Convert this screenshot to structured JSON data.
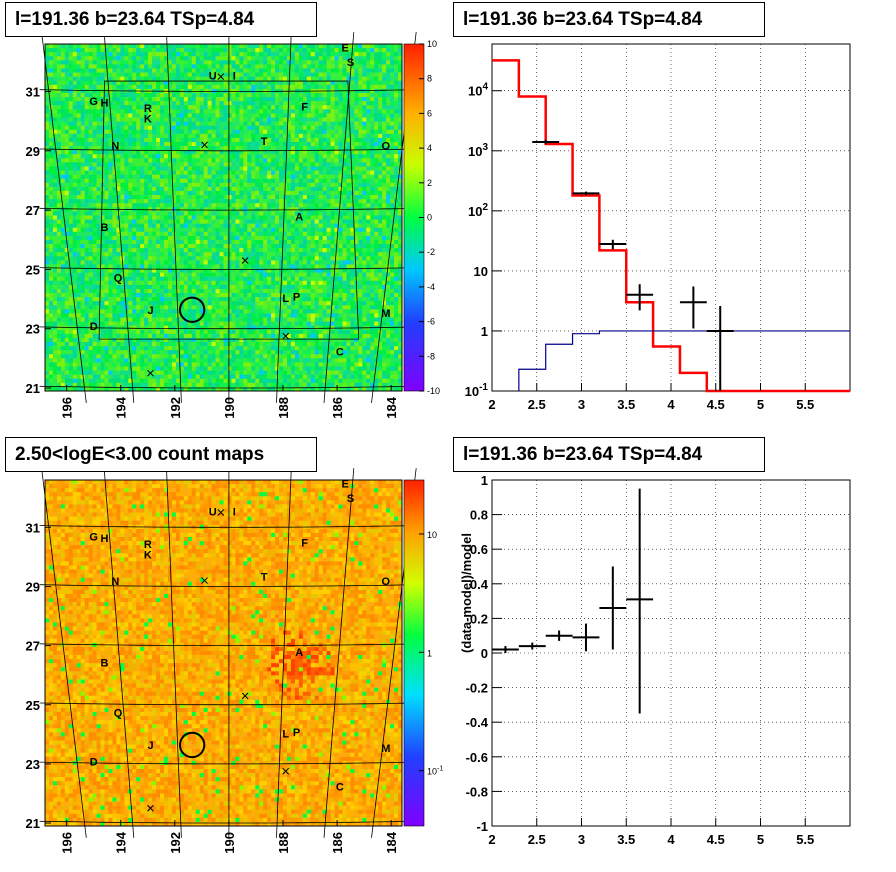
{
  "panels": {
    "top_left_title": "l=191.36 b=23.64 TSp=4.84",
    "top_right_title": "l=191.36 b=23.64 TSp=4.84",
    "bottom_left_title": "2.50<logE<3.00 count maps",
    "bottom_right_title": "l=191.36 b=23.64 TSp=4.84"
  },
  "colors": {
    "data": "#000000",
    "model": "#ff0000",
    "source": "#00008b"
  },
  "chart_data": [
    {
      "type": "heatmap",
      "panel": "residual map",
      "title": "l=191.36 b=23.64 TSp=4.84",
      "x_ticks": [
        "196",
        "194",
        "192",
        "190",
        "188",
        "186",
        "184"
      ],
      "y_ticks": [
        "31",
        "29",
        "27",
        "25",
        "23",
        "21"
      ],
      "xlim": [
        196.8,
        183.6
      ],
      "ylim": [
        20.9,
        32.6
      ],
      "colorbar": {
        "min": -10,
        "max": 10,
        "ticks": [
          "10",
          "8",
          "6",
          "4",
          "2",
          "0",
          "-2",
          "-4",
          "-6",
          "-8",
          "-10"
        ]
      },
      "labels": [
        {
          "t": "E",
          "l": 185.7,
          "b": 32.35
        },
        {
          "t": "S",
          "l": 185.5,
          "b": 31.85
        },
        {
          "t": "U",
          "l": 190.6,
          "b": 31.4
        },
        {
          "t": "I",
          "l": 189.8,
          "b": 31.4
        },
        {
          "t": "G",
          "l": 195.0,
          "b": 30.55
        },
        {
          "t": "H",
          "l": 194.6,
          "b": 30.5
        },
        {
          "t": "R",
          "l": 193.0,
          "b": 30.3
        },
        {
          "t": "K",
          "l": 193.0,
          "b": 29.95
        },
        {
          "t": "F",
          "l": 187.2,
          "b": 30.35
        },
        {
          "t": "N",
          "l": 194.2,
          "b": 29.05
        },
        {
          "t": "T",
          "l": 188.7,
          "b": 29.2
        },
        {
          "t": "O",
          "l": 184.2,
          "b": 29.05
        },
        {
          "t": "A",
          "l": 187.4,
          "b": 26.65
        },
        {
          "t": "B",
          "l": 194.6,
          "b": 26.3
        },
        {
          "t": "Q",
          "l": 194.1,
          "b": 24.6
        },
        {
          "t": "J",
          "l": 192.9,
          "b": 23.5
        },
        {
          "t": "L",
          "l": 187.9,
          "b": 23.9
        },
        {
          "t": "P",
          "l": 187.5,
          "b": 23.95
        },
        {
          "t": "D",
          "l": 195.0,
          "b": 22.95
        },
        {
          "t": "M",
          "l": 184.2,
          "b": 23.4
        },
        {
          "t": "C",
          "l": 185.9,
          "b": 22.1
        }
      ],
      "crosses": [
        {
          "l": 190.3,
          "b": 31.5
        },
        {
          "l": 190.9,
          "b": 29.2
        },
        {
          "l": 189.4,
          "b": 25.3
        },
        {
          "l": 187.9,
          "b": 22.75
        },
        {
          "l": 192.9,
          "b": 21.5
        }
      ],
      "circle": {
        "l": 191.36,
        "b": 23.64,
        "r": 0.45
      }
    },
    {
      "type": "line",
      "panel": "spectrum",
      "title": "l=191.36 b=23.64 TSp=4.84",
      "x_ticks": [
        "2",
        "2.5",
        "3",
        "3.5",
        "4",
        "4.5",
        "5",
        "5.5"
      ],
      "y_ticks": [
        "10^-1",
        "1",
        "10",
        "10^2",
        "10^3",
        "10^4"
      ],
      "xlim": [
        2,
        6
      ],
      "ylim": [
        0.1,
        60000
      ],
      "yscale": "log",
      "data_points": [
        {
          "x": 2.6,
          "xerr": 0.15,
          "y": 1400,
          "ylo": 1290,
          "yhi": 1520
        },
        {
          "x": 3.05,
          "xerr": 0.15,
          "y": 195,
          "ylo": 181,
          "yhi": 209
        },
        {
          "x": 3.35,
          "xerr": 0.15,
          "y": 28,
          "ylo": 23,
          "yhi": 33
        },
        {
          "x": 3.65,
          "xerr": 0.15,
          "y": 4,
          "ylo": 2.2,
          "yhi": 6
        },
        {
          "x": 4.25,
          "xerr": 0.15,
          "y": 3,
          "ylo": 1.1,
          "yhi": 5.5
        },
        {
          "x": 4.55,
          "xerr": 0.15,
          "y": 1,
          "ylo": 0.1,
          "yhi": 2.6
        }
      ],
      "model_steps": {
        "edges": [
          2,
          2.3,
          2.6,
          2.9,
          3.2,
          3.5,
          3.8,
          4.1,
          4.4,
          6
        ],
        "values": [
          32000,
          8000,
          1300,
          180,
          22,
          3,
          0.55,
          0.2,
          0.1
        ]
      },
      "source_steps": {
        "edges": [
          2.3,
          2.6,
          2.9,
          3.2,
          6
        ],
        "values": [
          0.23,
          0.6,
          0.9,
          1.0
        ]
      }
    },
    {
      "type": "heatmap",
      "panel": "count map",
      "title": "2.50<logE<3.00 count maps",
      "x_ticks": [
        "196",
        "194",
        "192",
        "190",
        "188",
        "186",
        "184"
      ],
      "y_ticks": [
        "31",
        "29",
        "27",
        "25",
        "23",
        "21"
      ],
      "xlim": [
        196.8,
        183.6
      ],
      "ylim": [
        20.9,
        32.6
      ],
      "colorbar": {
        "scale": "log",
        "ticks": [
          "10",
          "1",
          "10^-1"
        ]
      },
      "hotspot": {
        "l": 187.4,
        "b": 26.4
      }
    },
    {
      "type": "scatter",
      "panel": "residual spectrum",
      "title": "l=191.36 b=23.64 TSp=4.84",
      "ylabel": "(data-model)/model",
      "x_ticks": [
        "2",
        "2.5",
        "3",
        "3.5",
        "4",
        "4.5",
        "5",
        "5.5"
      ],
      "y_ticks": [
        "1",
        "0.8",
        "0.6",
        "0.4",
        "0.2",
        "0",
        "-0.2",
        "-0.4",
        "-0.6",
        "-0.8",
        "-1"
      ],
      "xlim": [
        2,
        6
      ],
      "ylim": [
        -1,
        1
      ],
      "points": [
        {
          "x": 2.15,
          "xerr": 0.15,
          "y": 0.02,
          "ylo": 0.0,
          "yhi": 0.04
        },
        {
          "x": 2.45,
          "xerr": 0.15,
          "y": 0.04,
          "ylo": 0.02,
          "yhi": 0.06
        },
        {
          "x": 2.75,
          "xerr": 0.15,
          "y": 0.1,
          "ylo": 0.07,
          "yhi": 0.13
        },
        {
          "x": 3.05,
          "xerr": 0.15,
          "y": 0.09,
          "ylo": 0.01,
          "yhi": 0.17
        },
        {
          "x": 3.35,
          "xerr": 0.15,
          "y": 0.26,
          "ylo": 0.02,
          "yhi": 0.5
        },
        {
          "x": 3.65,
          "xerr": 0.15,
          "y": 0.31,
          "ylo": -0.35,
          "yhi": 0.95
        }
      ]
    }
  ]
}
